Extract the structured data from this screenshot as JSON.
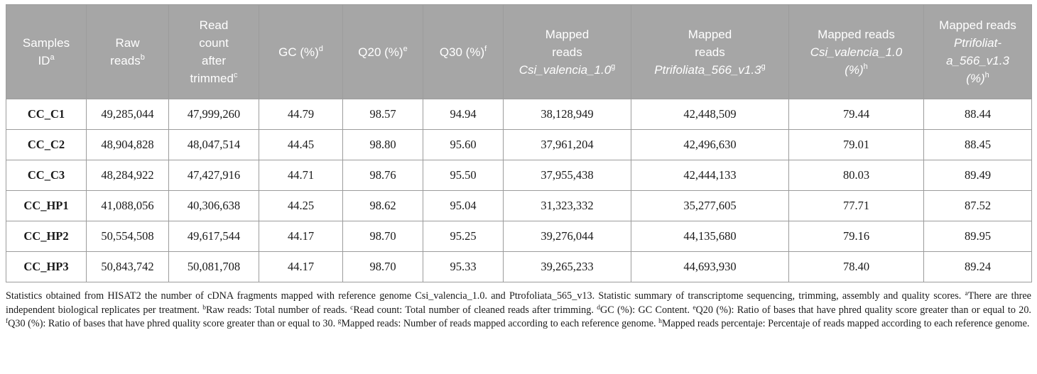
{
  "table": {
    "headers": [
      {
        "lines": [
          {
            "text": "Samples",
            "italic": false
          },
          {
            "text": "ID",
            "italic": false
          }
        ],
        "sup": "a"
      },
      {
        "lines": [
          {
            "text": "Raw",
            "italic": false
          },
          {
            "text": "reads",
            "italic": false
          }
        ],
        "sup": "b"
      },
      {
        "lines": [
          {
            "text": "Read",
            "italic": false
          },
          {
            "text": "count",
            "italic": false
          },
          {
            "text": "after",
            "italic": false
          },
          {
            "text": "trimmed",
            "italic": false
          }
        ],
        "sup": "c"
      },
      {
        "lines": [
          {
            "text": "GC (%)",
            "italic": false
          }
        ],
        "sup": "d"
      },
      {
        "lines": [
          {
            "text": "Q20 (%)",
            "italic": false
          }
        ],
        "sup": "e"
      },
      {
        "lines": [
          {
            "text": "Q30 (%)",
            "italic": false
          }
        ],
        "sup": "f"
      },
      {
        "lines": [
          {
            "text": "Mapped",
            "italic": false
          },
          {
            "text": "reads",
            "italic": false
          },
          {
            "text": "Csi_valencia_1.0",
            "italic": true
          }
        ],
        "sup": "g"
      },
      {
        "lines": [
          {
            "text": "Mapped",
            "italic": false
          },
          {
            "text": "reads",
            "italic": false
          },
          {
            "text": "Ptrifoliata_566_v1.3",
            "italic": true
          }
        ],
        "sup": "g"
      },
      {
        "lines": [
          {
            "text": "Mapped reads",
            "italic": false
          },
          {
            "text": "Csi_valencia_1.0",
            "italic": true
          },
          {
            "text": "(%)",
            "italic": true
          }
        ],
        "sup": "h"
      },
      {
        "lines": [
          {
            "text": "Mapped reads",
            "italic": false
          },
          {
            "text": "Ptrifoliat-",
            "italic": true
          },
          {
            "text": "a_566_v1.3",
            "italic": true
          },
          {
            "text": "(%)",
            "italic": true
          }
        ],
        "sup": "h"
      }
    ],
    "rows": [
      [
        "CC_C1",
        "49,285,044",
        "47,999,260",
        "44.79",
        "98.57",
        "94.94",
        "38,128,949",
        "42,448,509",
        "79.44",
        "88.44"
      ],
      [
        "CC_C2",
        "48,904,828",
        "48,047,514",
        "44.45",
        "98.80",
        "95.60",
        "37,961,204",
        "42,496,630",
        "79.01",
        "88.45"
      ],
      [
        "CC_C3",
        "48,284,922",
        "47,427,916",
        "44.71",
        "98.76",
        "95.50",
        "37,955,438",
        "42,444,133",
        "80.03",
        "89.49"
      ],
      [
        "CC_HP1",
        "41,088,056",
        "40,306,638",
        "44.25",
        "98.62",
        "95.04",
        "31,323,332",
        "35,277,605",
        "77.71",
        "87.52"
      ],
      [
        "CC_HP2",
        "50,554,508",
        "49,617,544",
        "44.17",
        "98.70",
        "95.25",
        "39,276,044",
        "44,135,680",
        "79.16",
        "89.95"
      ],
      [
        "CC_HP3",
        "50,843,742",
        "50,081,708",
        "44.17",
        "98.70",
        "95.33",
        "39,265,233",
        "44,693,930",
        "78.40",
        "89.24"
      ]
    ]
  },
  "footnote": {
    "intro": "Statistics obtained from HISAT2 the number of cDNA fragments mapped with reference genome Csi_valencia_1.0. and Ptrofoliata_565_v13. Statistic summary of transcriptome sequencing, trimming, assembly and quality scores. ",
    "items": [
      {
        "sup": "a",
        "text": "There are three independent biological replicates per treatment. "
      },
      {
        "sup": "b",
        "text": "Raw reads: Total number of reads. "
      },
      {
        "sup": "c",
        "text": "Read count: Total number of cleaned reads after trimming. "
      },
      {
        "sup": "d",
        "text": "GC (%): GC Content. "
      },
      {
        "sup": "e",
        "text": "Q20 (%): Ratio of bases that have phred quality score greater than or equal to 20. "
      },
      {
        "sup": "f",
        "text": "Q30 (%): Ratio of bases that have phred quality score greater than or equal to 30. "
      },
      {
        "sup": "g",
        "text": "Mapped reads: Number of reads mapped according to each reference genome. "
      },
      {
        "sup": "h",
        "text": "Mapped reads percentaje: Percentaje of reads mapped according to each reference genome."
      }
    ]
  }
}
